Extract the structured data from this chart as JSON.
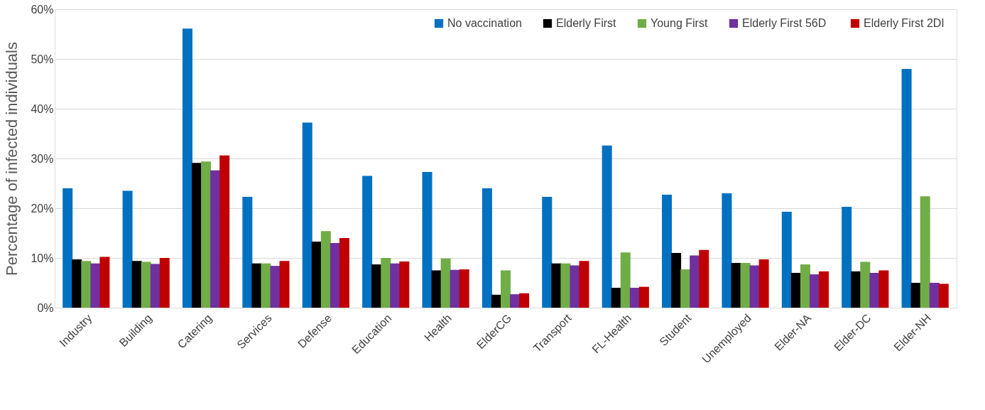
{
  "chart_data": {
    "type": "bar",
    "ylabel": "Percentage of infected individuals",
    "categories": [
      "Industry",
      "Building",
      "Catering",
      "Services",
      "Defense",
      "Education",
      "Health",
      "ElderCG",
      "Transport",
      "FL-Health",
      "Student",
      "Unemployed",
      "Elder-NA",
      "Elder-DC",
      "Elder-NH"
    ],
    "series": [
      {
        "name": "No vaccination",
        "color": "#0070c0",
        "values": [
          24.0,
          23.5,
          56.1,
          22.3,
          37.2,
          26.5,
          27.3,
          24.0,
          22.3,
          32.6,
          22.7,
          23.0,
          19.3,
          20.3,
          48.0
        ]
      },
      {
        "name": "Elderly First",
        "color": "#000000",
        "values": [
          9.7,
          9.4,
          29.1,
          8.9,
          13.3,
          8.7,
          7.5,
          2.6,
          8.9,
          4.0,
          11.0,
          9.0,
          7.0,
          7.3,
          5.0
        ]
      },
      {
        "name": "Young First",
        "color": "#70ad47",
        "values": [
          9.4,
          9.2,
          29.4,
          8.9,
          15.4,
          10.0,
          9.9,
          7.5,
          8.9,
          11.1,
          7.7,
          9.0,
          8.7,
          9.2,
          22.4
        ]
      },
      {
        "name": "Elderly First  56D",
        "color": "#7030a0",
        "values": [
          8.9,
          8.8,
          27.6,
          8.4,
          13.0,
          8.9,
          7.6,
          2.7,
          8.5,
          4.0,
          10.5,
          8.5,
          6.7,
          7.0,
          5.0
        ]
      },
      {
        "name": "Elderly First  2DI",
        "color": "#c00000",
        "values": [
          10.2,
          10.0,
          30.6,
          9.4,
          14.0,
          9.3,
          7.7,
          2.9,
          9.4,
          4.2,
          11.6,
          9.7,
          7.3,
          7.5,
          4.8
        ]
      }
    ],
    "ylim": [
      0,
      60
    ],
    "yticks": [
      {
        "value": 0,
        "label": "0%"
      },
      {
        "value": 10,
        "label": "10%"
      },
      {
        "value": 20,
        "label": "20%"
      },
      {
        "value": 30,
        "label": "30%"
      },
      {
        "value": 40,
        "label": "40%"
      },
      {
        "value": 50,
        "label": "50%"
      },
      {
        "value": 60,
        "label": "60%"
      }
    ],
    "grid": "y",
    "legend": "top right"
  }
}
